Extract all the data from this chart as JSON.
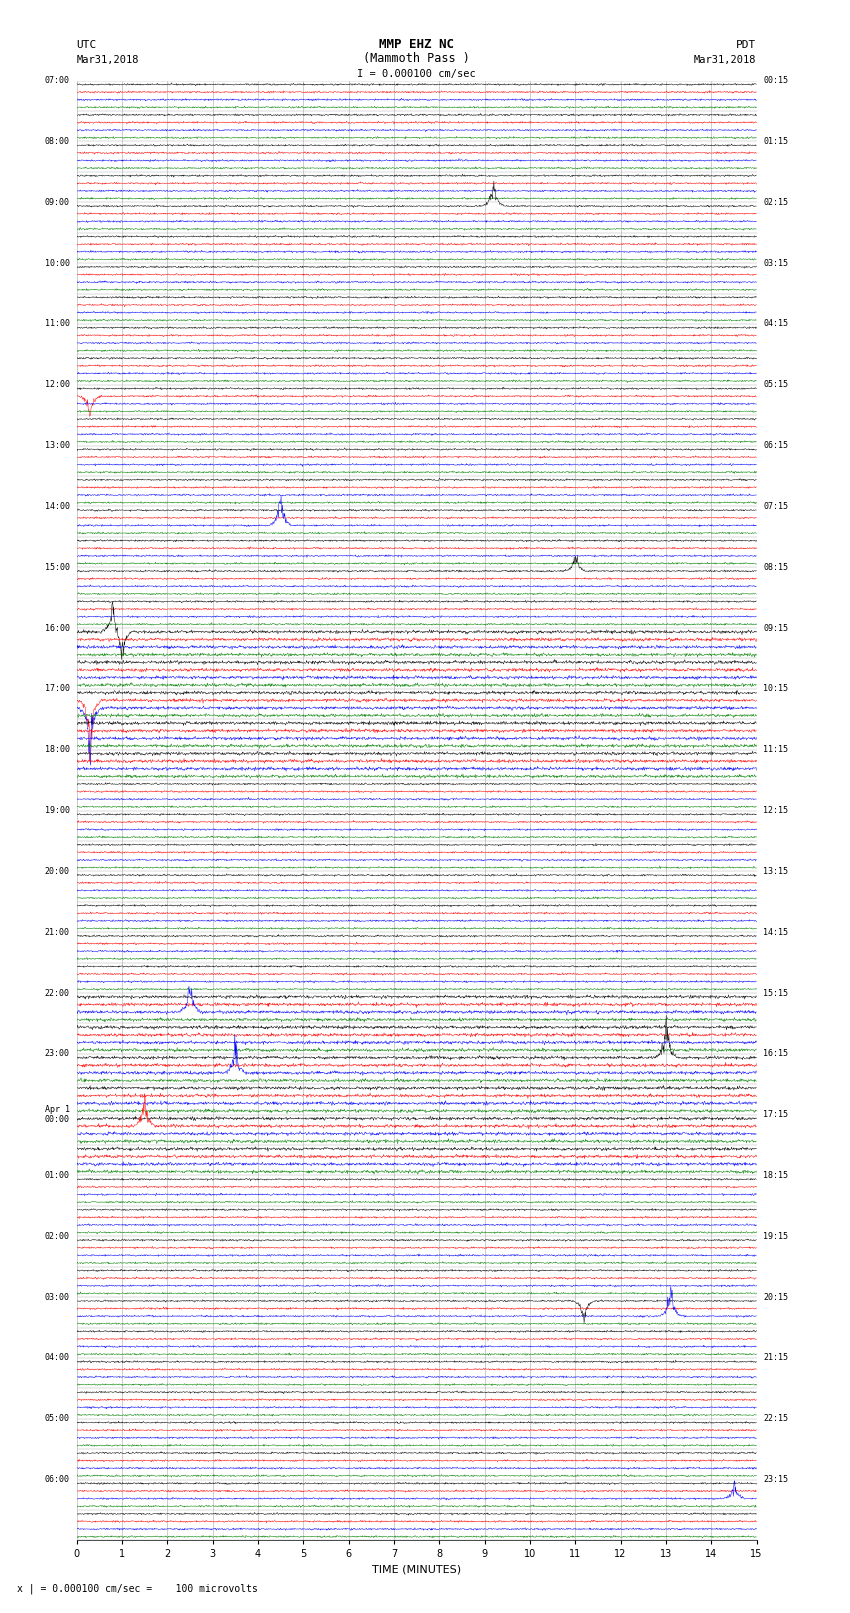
{
  "title_line1": "MMP EHZ NC",
  "title_line2": "(Mammoth Pass )",
  "title_scale": "I = 0.000100 cm/sec",
  "bottom_label": "TIME (MINUTES)",
  "bottom_note": "x | = 0.000100 cm/sec =    100 microvolts",
  "xlim": [
    0,
    15
  ],
  "xticks": [
    0,
    1,
    2,
    3,
    4,
    5,
    6,
    7,
    8,
    9,
    10,
    11,
    12,
    13,
    14,
    15
  ],
  "left_times": [
    "07:00",
    "",
    "08:00",
    "",
    "09:00",
    "",
    "10:00",
    "",
    "11:00",
    "",
    "12:00",
    "",
    "13:00",
    "",
    "14:00",
    "",
    "15:00",
    "",
    "16:00",
    "",
    "17:00",
    "",
    "18:00",
    "",
    "19:00",
    "",
    "20:00",
    "",
    "21:00",
    "",
    "22:00",
    "",
    "23:00",
    "",
    "Apr 1\n00:00",
    "",
    "01:00",
    "",
    "02:00",
    "",
    "03:00",
    "",
    "04:00",
    "",
    "05:00",
    "",
    "06:00",
    ""
  ],
  "right_times": [
    "00:15",
    "",
    "01:15",
    "",
    "02:15",
    "",
    "03:15",
    "",
    "04:15",
    "",
    "05:15",
    "",
    "06:15",
    "",
    "07:15",
    "",
    "08:15",
    "",
    "09:15",
    "",
    "10:15",
    "",
    "11:15",
    "",
    "12:15",
    "",
    "13:15",
    "",
    "14:15",
    "",
    "15:15",
    "",
    "16:15",
    "",
    "17:15",
    "",
    "18:15",
    "",
    "19:15",
    "",
    "20:15",
    "",
    "21:15",
    "",
    "22:15",
    "",
    "23:15",
    ""
  ],
  "bg_color": "#ffffff",
  "trace_colors": [
    "#000000",
    "#ff0000",
    "#0000ff",
    "#008000"
  ],
  "grid_color": "#aaaaaa",
  "num_rows": 48,
  "traces_per_row": 4,
  "noise_amplitude": 0.055,
  "noise_seed": 42
}
